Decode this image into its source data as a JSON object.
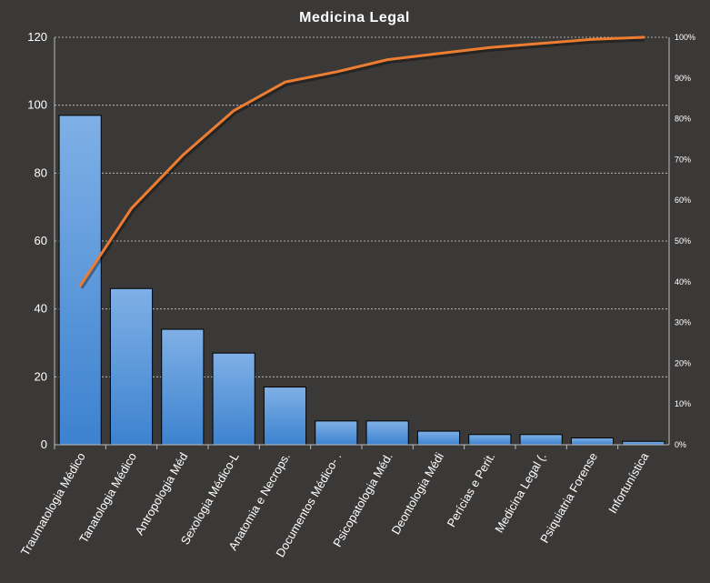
{
  "chart_data": {
    "type": "bar",
    "title": "Medicina Legal",
    "categories": [
      "Traumatologia Médico",
      "Tanatologia Médico",
      "Antropologia Méd",
      "Sexologia Médico-L",
      "Anatomia e Necrops.",
      "Documentos Médico- .",
      "Psicopatologia Méd.",
      "Deontologia Médi",
      "Perícias e Perit.",
      "Medicina Legal (.",
      "Psiquiatria Forense",
      "Infortunística"
    ],
    "series": [
      {
        "type": "bar",
        "values": [
          97,
          46,
          34,
          27,
          17,
          7,
          7,
          4,
          3,
          3,
          2,
          1
        ]
      },
      {
        "type": "line",
        "axis": "right",
        "values": [
          39,
          58,
          71,
          82,
          89,
          91.5,
          94.5,
          96,
          97.5,
          98.5,
          99.5,
          100
        ]
      }
    ],
    "ylim": [
      0,
      120
    ],
    "yticks": [
      "0",
      "20",
      "40",
      "60",
      "80",
      "100",
      "120"
    ],
    "y2lim": [
      0,
      100
    ],
    "y2ticks": [
      "0%",
      "10%",
      "20%",
      "30%",
      "40%",
      "50%",
      "60%",
      "70%",
      "80%",
      "90%",
      "100%"
    ],
    "grid": true,
    "colors": {
      "background": "#3b3938",
      "bar_top": "#7fb0e6",
      "bar_bottom": "#3d82cf",
      "bar_stroke": "#000000",
      "line": "#ed7d31",
      "grid": "#d0d0d0",
      "axis": "#bbbbbb",
      "text": "#ffffff"
    }
  }
}
